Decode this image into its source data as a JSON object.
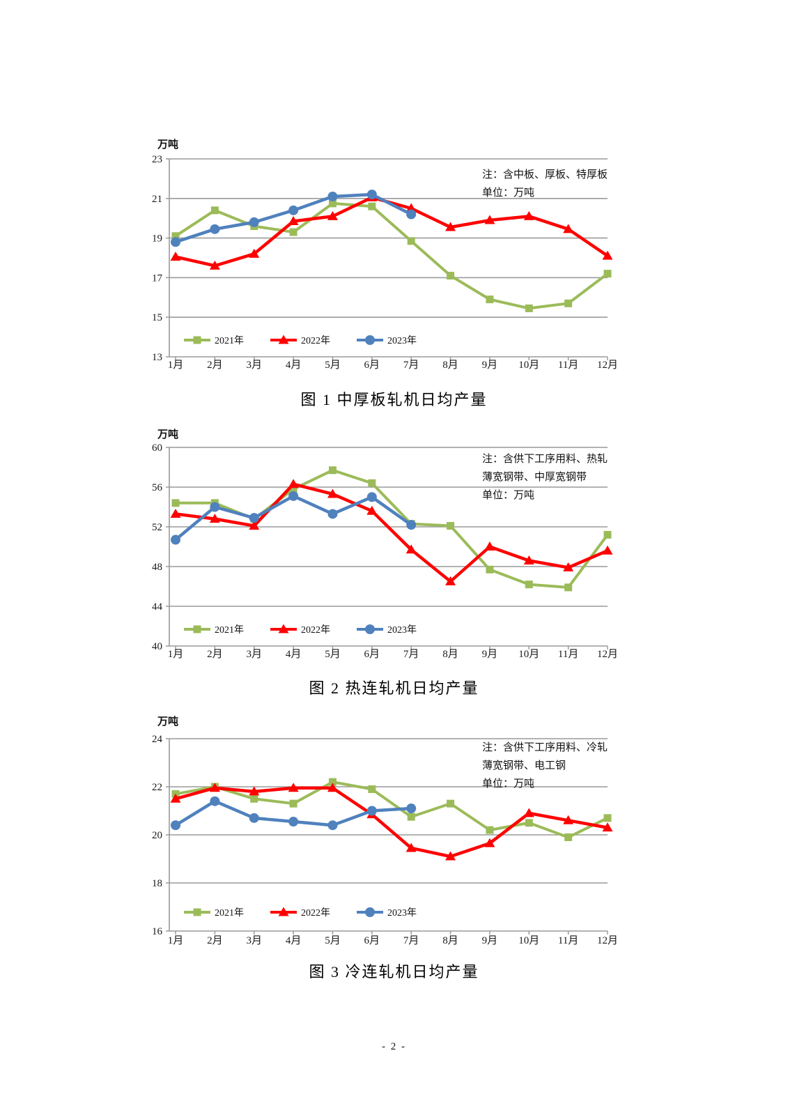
{
  "footer": {
    "page_number": "- 2 -"
  },
  "chart_data": [
    {
      "type": "line",
      "title": "图 1  中厚板轧机日均产量",
      "unit_label": "万吨",
      "note_lines": [
        "注：含中板、厚板、特厚板",
        "单位：万吨"
      ],
      "categories": [
        "1月",
        "2月",
        "3月",
        "4月",
        "5月",
        "6月",
        "7月",
        "8月",
        "9月",
        "10月",
        "11月",
        "12月"
      ],
      "ylim": [
        13,
        23
      ],
      "y_ticks": [
        23,
        21,
        19,
        17,
        15,
        13
      ],
      "grid": true,
      "legend_position": "bottom-left-inside",
      "series": [
        {
          "name": "2021年",
          "color": "#9BBB59",
          "marker": "square",
          "values": [
            19.1,
            20.4,
            19.6,
            19.3,
            20.75,
            20.6,
            18.85,
            17.1,
            15.9,
            15.45,
            15.7,
            17.2
          ]
        },
        {
          "name": "2022年",
          "color": "#FF0000",
          "marker": "triangle",
          "values": [
            18.05,
            17.6,
            18.2,
            19.85,
            20.1,
            21.05,
            20.5,
            19.55,
            19.9,
            20.1,
            19.45,
            18.1
          ]
        },
        {
          "name": "2023年",
          "color": "#4F81BD",
          "marker": "circle",
          "values": [
            18.8,
            19.45,
            19.8,
            20.4,
            21.1,
            21.2,
            20.2
          ]
        }
      ]
    },
    {
      "type": "line",
      "title": "图 2  热连轧机日均产量",
      "unit_label": "万吨",
      "note_lines": [
        "注：含供下工序用料、热轧",
        "薄宽钢带、中厚宽钢带",
        "单位：万吨"
      ],
      "categories": [
        "1月",
        "2月",
        "3月",
        "4月",
        "5月",
        "6月",
        "7月",
        "8月",
        "9月",
        "10月",
        "11月",
        "12月"
      ],
      "ylim": [
        40,
        60
      ],
      "y_ticks": [
        60,
        56,
        52,
        48,
        44,
        40
      ],
      "grid": true,
      "legend_position": "bottom-left-inside",
      "series": [
        {
          "name": "2021年",
          "color": "#9BBB59",
          "marker": "square",
          "values": [
            54.4,
            54.4,
            52.8,
            55.8,
            57.7,
            56.4,
            52.3,
            52.1,
            47.7,
            46.2,
            45.9,
            51.2
          ]
        },
        {
          "name": "2022年",
          "color": "#FF0000",
          "marker": "triangle",
          "values": [
            53.3,
            52.8,
            52.1,
            56.3,
            55.3,
            53.6,
            49.7,
            46.5,
            50.0,
            48.6,
            47.9,
            49.6
          ]
        },
        {
          "name": "2023年",
          "color": "#4F81BD",
          "marker": "circle",
          "values": [
            50.7,
            54.0,
            52.9,
            55.1,
            53.3,
            55.0,
            52.2
          ]
        }
      ]
    },
    {
      "type": "line",
      "title": "图 3  冷连轧机日均产量",
      "unit_label": "万吨",
      "note_lines": [
        "注：含供下工序用料、冷轧",
        "薄宽钢带、电工钢",
        "单位：万吨"
      ],
      "categories": [
        "1月",
        "2月",
        "3月",
        "4月",
        "5月",
        "6月",
        "7月",
        "8月",
        "9月",
        "10月",
        "11月",
        "12月"
      ],
      "ylim": [
        16,
        24
      ],
      "y_ticks": [
        24,
        22,
        20,
        18,
        16
      ],
      "grid": true,
      "legend_position": "bottom-left-inside",
      "series": [
        {
          "name": "2021年",
          "color": "#9BBB59",
          "marker": "square",
          "values": [
            21.7,
            22.0,
            21.5,
            21.3,
            22.2,
            21.9,
            20.75,
            21.3,
            20.2,
            20.5,
            19.9,
            20.7
          ]
        },
        {
          "name": "2022年",
          "color": "#FF0000",
          "marker": "triangle",
          "values": [
            21.5,
            21.95,
            21.8,
            21.95,
            21.95,
            20.85,
            19.45,
            19.1,
            19.65,
            20.9,
            20.6,
            20.3
          ]
        },
        {
          "name": "2023年",
          "color": "#4F81BD",
          "marker": "circle",
          "values": [
            20.4,
            21.4,
            20.7,
            20.55,
            20.4,
            21.0,
            21.1
          ]
        }
      ]
    }
  ]
}
